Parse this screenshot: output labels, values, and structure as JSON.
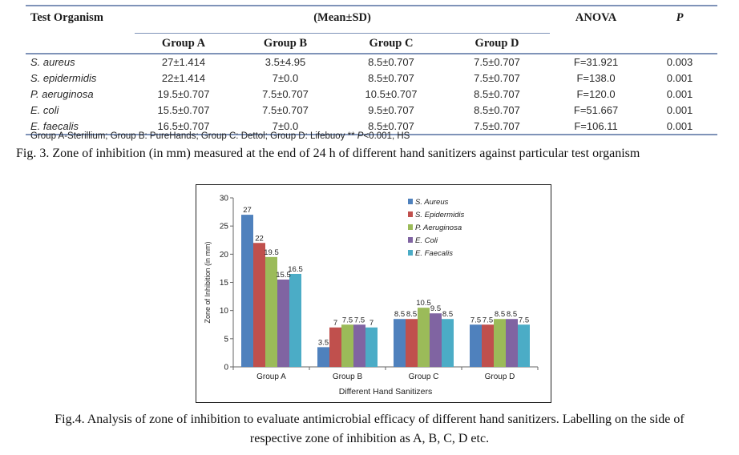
{
  "table": {
    "header_organism": "Test Organism",
    "header_mean": "(Mean±SD)",
    "header_anova": "ANOVA",
    "header_p": "P",
    "groups": [
      "Group A",
      "Group B",
      "Group C",
      "Group D"
    ],
    "rows": [
      {
        "organism": "S. aureus",
        "a": "27±1.414",
        "b": "3.5±4.95",
        "c": "8.5±0.707",
        "d": "7.5±0.707",
        "anova": "F=31.921",
        "p": "0.003"
      },
      {
        "organism": "S. epidermidis",
        "a": "22±1.414",
        "b": "7±0.0",
        "c": "8.5±0.707",
        "d": "7.5±0.707",
        "anova": "F=138.0",
        "p": "0.001"
      },
      {
        "organism": "P. aeruginosa",
        "a": "19.5±0.707",
        "b": "7.5±0.707",
        "c": "10.5±0.707",
        "d": "8.5±0.707",
        "anova": "F=120.0",
        "p": "0.001"
      },
      {
        "organism": "E. coli",
        "a": "15.5±0.707",
        "b": "7.5±0.707",
        "c": "9.5±0.707",
        "d": "8.5±0.707",
        "anova": "F=51.667",
        "p": "0.001"
      },
      {
        "organism": "E. faecalis",
        "a": "16.5±0.707",
        "b": "7±0.0",
        "c": "8.5±0.707",
        "d": "7.5±0.707",
        "anova": "F=106.11",
        "p": "0.001"
      }
    ],
    "footnote_main": "Group A-Sterillium; Group B: PureHands; Group C: Dettol; Group D: Lifebuoy ** ",
    "footnote_p": "P",
    "footnote_tail": "<0.001, HS"
  },
  "fig3_caption": "Fig. 3. Zone of inhibition (in mm) measured at the end of 24 h of different hand sanitizers against particular test organism",
  "fig4_caption_line1": "Fig.4. Analysis of zone of inhibition to evaluate antimicrobial efficacy of different hand sanitizers. Labelling on the side of",
  "fig4_caption_line2": "respective zone of inhibition as A, B, C, D etc.",
  "chart_data": {
    "type": "bar",
    "categories": [
      "Group A",
      "Group B",
      "Group C",
      "Group D"
    ],
    "series": [
      {
        "name": "S. Aureus",
        "color": "#4f81bd",
        "values": [
          27,
          3.5,
          8.5,
          7.5
        ],
        "labels": [
          "27",
          "3.5",
          "8.5",
          "7.5"
        ]
      },
      {
        "name": "S. Epidermidis",
        "color": "#c0504d",
        "values": [
          22,
          7,
          8.5,
          7.5
        ],
        "labels": [
          "22",
          "7",
          "8.5",
          "7.5"
        ]
      },
      {
        "name": "P. Aeruginosa",
        "color": "#9bbb59",
        "values": [
          19.5,
          7.5,
          10.5,
          8.5
        ],
        "labels": [
          "19.5",
          "7.5",
          "10.5",
          "8.5"
        ]
      },
      {
        "name": "E. Coli",
        "color": "#8064a2",
        "values": [
          15.5,
          7.5,
          9.5,
          8.5
        ],
        "labels": [
          "15.5",
          "7.5",
          "9.5",
          "8.5"
        ]
      },
      {
        "name": "E. Faecalis",
        "color": "#4bacc6",
        "values": [
          16.5,
          7,
          8.5,
          7.5
        ],
        "labels": [
          "16.5",
          "7",
          "8.5",
          "7.5"
        ]
      }
    ],
    "xlabel": "Different Hand Sanitizers",
    "ylabel": "Zone of Inhibition (in mm)",
    "ylim": [
      0,
      30
    ],
    "yticks": [
      0,
      5,
      10,
      15,
      20,
      25,
      30
    ],
    "grid": false,
    "legend_position": "top-right"
  }
}
